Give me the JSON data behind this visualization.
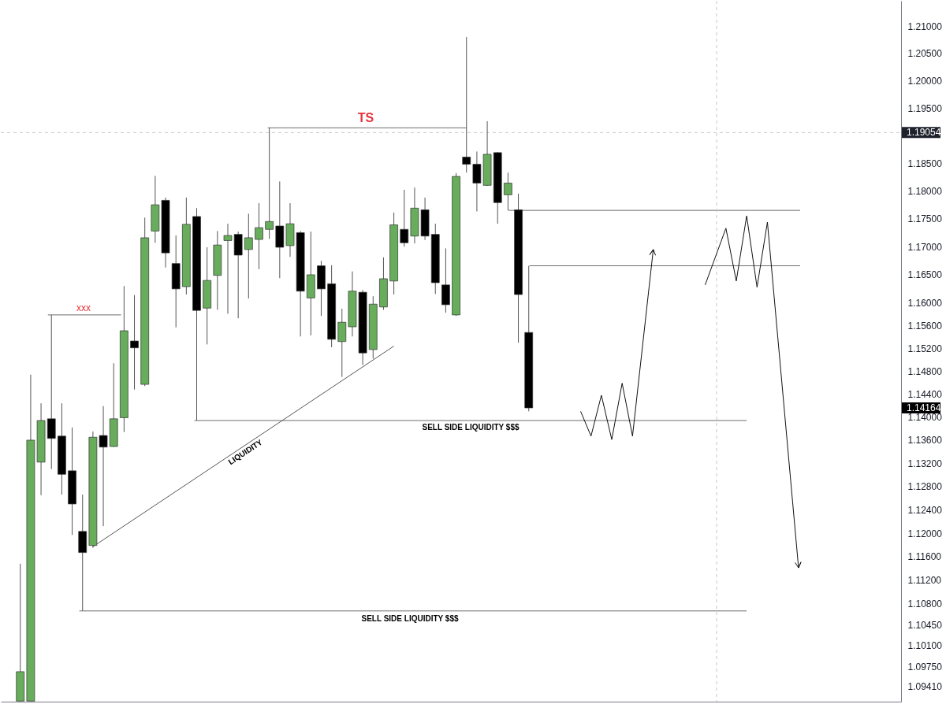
{
  "chart_data": {
    "type": "candlestick",
    "categories": [
      null,
      null,
      null,
      null,
      null,
      null,
      null,
      null,
      null,
      null,
      null,
      null,
      null,
      null,
      null,
      null,
      null,
      null,
      null,
      null,
      null,
      null,
      null,
      null,
      null,
      null,
      null,
      null,
      null,
      null,
      null,
      null,
      null,
      null,
      null,
      null,
      null,
      null,
      null,
      null,
      null,
      null,
      null,
      null,
      null,
      null,
      null,
      null,
      null,
      null,
      null,
      null,
      null,
      null,
      null,
      null,
      null,
      null,
      null,
      null,
      null,
      null,
      null,
      null,
      null,
      null,
      null,
      null,
      null,
      null,
      null,
      null,
      null,
      null,
      null,
      null,
      null,
      null,
      null,
      null,
      null,
      null,
      null,
      null,
      null,
      null
    ],
    "ohlc": [
      null,
      [
        1.0917,
        1.1148,
        1.0917,
        1.0966
      ],
      [
        1.0917,
        1.1474,
        1.0917,
        1.136
      ],
      [
        1.1322,
        1.1424,
        1.1265,
        1.1394
      ],
      [
        1.1397,
        1.1579,
        1.131,
        1.1363
      ],
      [
        1.1367,
        1.1424,
        1.1266,
        1.1301
      ],
      [
        1.1307,
        1.1382,
        1.1197,
        1.125
      ],
      [
        1.1203,
        1.1266,
        1.1068,
        1.1167
      ],
      [
        1.1179,
        1.1375,
        1.1175,
        1.1365
      ],
      [
        1.1368,
        1.1419,
        1.1212,
        1.1348
      ],
      [
        1.1349,
        1.1494,
        1.1348,
        1.1397
      ],
      [
        1.1399,
        1.163,
        1.1374,
        1.1551
      ],
      [
        1.1533,
        1.1614,
        1.1448,
        1.1521
      ],
      [
        1.1457,
        1.1752,
        1.1454,
        1.1716
      ],
      [
        1.1728,
        1.1827,
        1.1707,
        1.1775
      ],
      [
        1.1783,
        1.1788,
        1.1663,
        1.1689
      ],
      [
        1.167,
        1.172,
        1.1557,
        1.1625
      ],
      [
        1.1629,
        1.1788,
        1.1615,
        1.174
      ],
      [
        1.1754,
        1.1769,
        1.1394,
        1.1587
      ],
      [
        1.1591,
        1.1699,
        1.1527,
        1.164
      ],
      [
        1.1649,
        1.1728,
        1.1588,
        1.1703
      ],
      [
        1.1711,
        1.1741,
        1.1581,
        1.172
      ],
      [
        1.1722,
        1.1727,
        1.1573,
        1.1685
      ],
      [
        1.1695,
        1.1759,
        1.1608,
        1.1716
      ],
      [
        1.1713,
        1.1778,
        1.166,
        1.1734
      ],
      [
        1.1731,
        1.1914,
        1.1714,
        1.1745
      ],
      [
        1.1737,
        1.1817,
        1.1644,
        1.1699
      ],
      [
        1.1702,
        1.1778,
        1.1682,
        1.1741
      ],
      [
        1.1725,
        1.1728,
        1.1541,
        1.1621
      ],
      [
        1.1609,
        1.1727,
        1.1543,
        1.165
      ],
      [
        1.1666,
        1.1675,
        1.1577,
        1.1625
      ],
      [
        1.1634,
        1.1667,
        1.1522,
        1.1536
      ],
      [
        1.1532,
        1.159,
        1.147,
        1.1566
      ],
      [
        1.1558,
        1.1656,
        1.1541,
        1.1621
      ],
      [
        1.1619,
        1.1623,
        1.1491,
        1.1512
      ],
      [
        1.1518,
        1.1612,
        1.1502,
        1.1598
      ],
      [
        1.1593,
        1.1681,
        1.1588,
        1.1643
      ],
      [
        1.1639,
        1.1761,
        1.1615,
        1.1739
      ],
      [
        1.1731,
        1.1802,
        1.17,
        1.1707
      ],
      [
        1.1719,
        1.1806,
        1.1706,
        1.1769
      ],
      [
        1.1766,
        1.1788,
        1.1712,
        1.1719
      ],
      [
        1.1722,
        1.1741,
        1.1616,
        1.1636
      ],
      [
        1.1632,
        1.1697,
        1.1583,
        1.1597
      ],
      [
        1.1579,
        1.1832,
        1.1577,
        1.1826
      ],
      [
        1.1861,
        1.208,
        1.1833,
        1.1848
      ],
      [
        1.1848,
        1.1871,
        1.1763,
        1.1814
      ],
      [
        1.181,
        1.1926,
        1.1809,
        1.1866
      ],
      [
        1.1869,
        1.187,
        1.1741,
        1.1779
      ],
      [
        1.1793,
        1.1833,
        1.1765,
        1.1814
      ],
      [
        1.1766,
        1.1795,
        1.153,
        1.1615
      ],
      [
        1.1548,
        1.1666,
        1.141,
        1.1416
      ],
      null,
      null,
      null,
      null,
      null,
      null,
      null,
      null,
      null,
      null,
      null,
      null,
      null,
      null,
      null,
      null,
      null,
      null,
      null,
      null,
      null,
      null,
      null,
      null,
      null,
      null,
      null,
      null,
      null,
      null,
      null,
      null,
      null,
      null,
      null
    ],
    "colors": [
      null,
      "#67ad5b",
      "#67ad5b",
      "#67ad5b",
      "#000000",
      "#000000",
      "#000000",
      "#000000",
      "#67ad5b",
      "#000000",
      "#67ad5b",
      "#67ad5b",
      "#000000",
      "#67ad5b",
      "#67ad5b",
      "#000000",
      "#000000",
      "#67ad5b",
      "#000000",
      "#67ad5b",
      "#67ad5b",
      "#67ad5b",
      "#000000",
      "#67ad5b",
      "#67ad5b",
      "#67ad5b",
      "#000000",
      "#67ad5b",
      "#000000",
      "#67ad5b",
      "#000000",
      "#000000",
      "#67ad5b",
      "#67ad5b",
      "#000000",
      "#67ad5b",
      "#67ad5b",
      "#67ad5b",
      "#000000",
      "#67ad5b",
      "#000000",
      "#000000",
      "#000000",
      "#67ad5b",
      "#000000",
      "#000000",
      "#67ad5b",
      "#000000",
      "#67ad5b",
      "#000000",
      "#000000",
      null,
      null,
      null,
      null,
      null,
      null,
      null,
      null,
      null,
      null,
      null,
      null,
      null,
      null,
      null,
      null,
      null,
      null,
      null,
      null,
      null,
      null,
      null,
      null,
      null,
      null,
      null,
      null,
      null,
      null,
      null,
      null,
      null,
      null,
      null
    ],
    "series": [
      {
        "name": "LIQUIDITY",
        "type": "line",
        "color": "#555555",
        "values": [
          null,
          null,
          null,
          null,
          null,
          null,
          null,
          null,
          1.1177,
          null,
          null,
          null,
          null,
          null,
          null,
          null,
          null,
          null,
          null,
          null,
          null,
          null,
          null,
          null,
          null,
          null,
          null,
          null,
          null,
          null,
          null,
          null,
          null,
          null,
          null,
          null,
          null,
          1.1524,
          null,
          null,
          null,
          null,
          null,
          null,
          null,
          null,
          null,
          null,
          null,
          null,
          null,
          null,
          null,
          null,
          null,
          null,
          null,
          null,
          null,
          null,
          null,
          null,
          null,
          null,
          null,
          null,
          null,
          null,
          null,
          null,
          null,
          null,
          null,
          null,
          null,
          null,
          null,
          null,
          null,
          null,
          null,
          null,
          null,
          null,
          null,
          null
        ]
      },
      {
        "type": "line",
        "color": "#111111",
        "values": [
          null,
          null,
          null,
          null,
          null,
          null,
          null,
          null,
          null,
          null,
          null,
          null,
          null,
          null,
          null,
          null,
          null,
          null,
          null,
          null,
          null,
          null,
          null,
          null,
          null,
          null,
          null,
          null,
          null,
          null,
          null,
          null,
          null,
          null,
          null,
          null,
          null,
          null,
          null,
          null,
          null,
          null,
          null,
          null,
          null,
          null,
          null,
          null,
          null,
          null,
          null,
          null,
          null,
          null,
          null,
          1.141,
          1.1367,
          1.1438,
          1.1361,
          1.1459,
          1.1367,
          null,
          1.1695,
          null,
          null,
          null,
          null,
          null,
          null,
          null,
          null,
          null,
          null,
          null,
          null,
          null,
          null,
          null,
          null,
          null,
          null,
          null,
          null,
          null,
          null,
          null
        ]
      },
      {
        "type": "line",
        "color": "#111111",
        "values": [
          null,
          null,
          null,
          null,
          null,
          null,
          null,
          null,
          null,
          null,
          null,
          null,
          null,
          null,
          null,
          null,
          null,
          null,
          null,
          null,
          null,
          null,
          null,
          null,
          null,
          null,
          null,
          null,
          null,
          null,
          null,
          null,
          null,
          null,
          null,
          null,
          null,
          null,
          null,
          null,
          null,
          null,
          null,
          null,
          null,
          null,
          null,
          null,
          null,
          null,
          null,
          null,
          null,
          null,
          null,
          null,
          null,
          null,
          null,
          null,
          null,
          null,
          null,
          null,
          null,
          null,
          null,
          1.1632,
          null,
          1.1733,
          1.1639,
          1.1755,
          1.1628,
          1.1744,
          null,
          null,
          1.1141,
          null,
          null,
          null,
          null,
          null,
          null,
          null,
          null,
          null
        ]
      }
    ],
    "ylim": [
      1.0916,
      1.2147
    ],
    "yticks": [
      {
        "value": 1.21,
        "label": "1.21000"
      },
      {
        "value": 1.205,
        "label": "1.20500"
      },
      {
        "value": 1.2,
        "label": "1.20000"
      },
      {
        "value": 1.195,
        "label": "1.19500"
      },
      {
        "value": 1.185,
        "label": "1.18500"
      },
      {
        "value": 1.18,
        "label": "1.18000"
      },
      {
        "value": 1.175,
        "label": "1.17500"
      },
      {
        "value": 1.17,
        "label": "1.17000"
      },
      {
        "value": 1.165,
        "label": "1.16500"
      },
      {
        "value": 1.16,
        "label": "1.16000"
      },
      {
        "value": 1.156,
        "label": "1.15600"
      },
      {
        "value": 1.152,
        "label": "1.15200"
      },
      {
        "value": 1.148,
        "label": "1.14800"
      },
      {
        "value": 1.144,
        "label": "1.14400"
      },
      {
        "value": 1.14,
        "label": "1.14000"
      },
      {
        "value": 1.136,
        "label": "1.13600"
      },
      {
        "value": 1.132,
        "label": "1.13200"
      },
      {
        "value": 1.128,
        "label": "1.12800"
      },
      {
        "value": 1.124,
        "label": "1.12400"
      },
      {
        "value": 1.12,
        "label": "1.12000"
      },
      {
        "value": 1.116,
        "label": "1.11600"
      },
      {
        "value": 1.112,
        "label": "1.11200"
      },
      {
        "value": 1.108,
        "label": "1.10800"
      },
      {
        "value": 1.1045,
        "label": "1.10450"
      },
      {
        "value": 1.101,
        "label": "1.10100"
      },
      {
        "value": 1.0975,
        "label": "1.09750"
      },
      {
        "value": 1.0941,
        "label": "1.09410"
      }
    ],
    "log": true,
    "tick_labels": "y",
    "ref_lines": [
      {
        "axis": "y",
        "value": 1.19054,
        "label": "1.19054",
        "color": "#c4c7ce",
        "line_style": "dashed"
      },
      {
        "axis": "y",
        "value": 1.1914,
        "label": "TS",
        "color": "#6e6e6e"
      },
      {
        "axis": "y",
        "value": 1.1579,
        "label": "xxx",
        "color": "#6e6e6e"
      },
      {
        "axis": "y",
        "value": 1.1765,
        "color": "#6e6e6e"
      },
      {
        "axis": "y",
        "value": 1.1666,
        "color": "#6e6e6e"
      },
      {
        "axis": "y",
        "value": 1.1394,
        "label": "SELL SIDE LIQUIDITY $$$",
        "color": "#6e6e6e"
      },
      {
        "axis": "y",
        "value": 1.1068,
        "label": "SELL SIDE LIQUIDITY $$$",
        "color": "#6e6e6e"
      }
    ],
    "annotations": [
      "1.14164"
    ]
  }
}
